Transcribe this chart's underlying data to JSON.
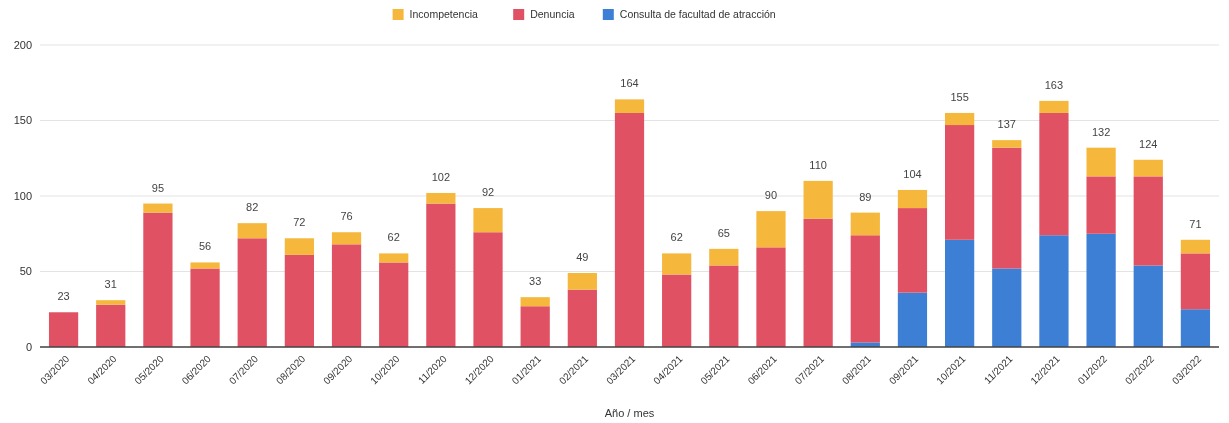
{
  "chart_data": {
    "type": "bar",
    "stacked": true,
    "xlabel": "Año / mes",
    "categories": [
      "03/2020",
      "04/2020",
      "05/2020",
      "06/2020",
      "07/2020",
      "08/2020",
      "09/2020",
      "10/2020",
      "11/2020",
      "12/2020",
      "01/2021",
      "02/2021",
      "03/2021",
      "04/2021",
      "05/2021",
      "06/2021",
      "07/2021",
      "08/2021",
      "09/2021",
      "10/2021",
      "11/2021",
      "12/2021",
      "01/2022",
      "02/2022",
      "03/2022"
    ],
    "series": [
      {
        "name": "Consulta de facultad de atracción",
        "color": "#3c7fd4",
        "values": [
          null,
          null,
          null,
          null,
          null,
          null,
          null,
          null,
          null,
          null,
          null,
          null,
          null,
          null,
          null,
          null,
          null,
          3,
          36,
          71,
          52,
          74,
          75,
          54,
          25
        ]
      },
      {
        "name": "Denuncia",
        "color": "#e05263",
        "values": [
          23,
          28,
          89,
          52,
          72,
          61,
          68,
          56,
          95,
          76,
          27,
          38,
          155,
          48,
          54,
          66,
          85,
          71,
          56,
          76,
          80,
          81,
          38,
          59,
          37
        ]
      },
      {
        "name": "Incompetencia",
        "color": "#f5b83d",
        "values": [
          null,
          3,
          6,
          4,
          10,
          11,
          8,
          6,
          7,
          16,
          6,
          11,
          9,
          14,
          11,
          24,
          25,
          15,
          12,
          8,
          5,
          8,
          19,
          11,
          9
        ]
      }
    ],
    "totals": [
      "23",
      "31",
      "95",
      "56",
      "82",
      "72",
      "76",
      "62",
      "102",
      "92",
      "33",
      "49",
      "164",
      "62",
      "65",
      "90",
      "110",
      "89",
      "104",
      "155",
      "137",
      "163",
      "132",
      "124",
      "71"
    ],
    "ylim": [
      0,
      200
    ],
    "yticks": [
      0,
      50,
      100,
      150,
      200
    ],
    "grid": "y",
    "legend": "top"
  }
}
